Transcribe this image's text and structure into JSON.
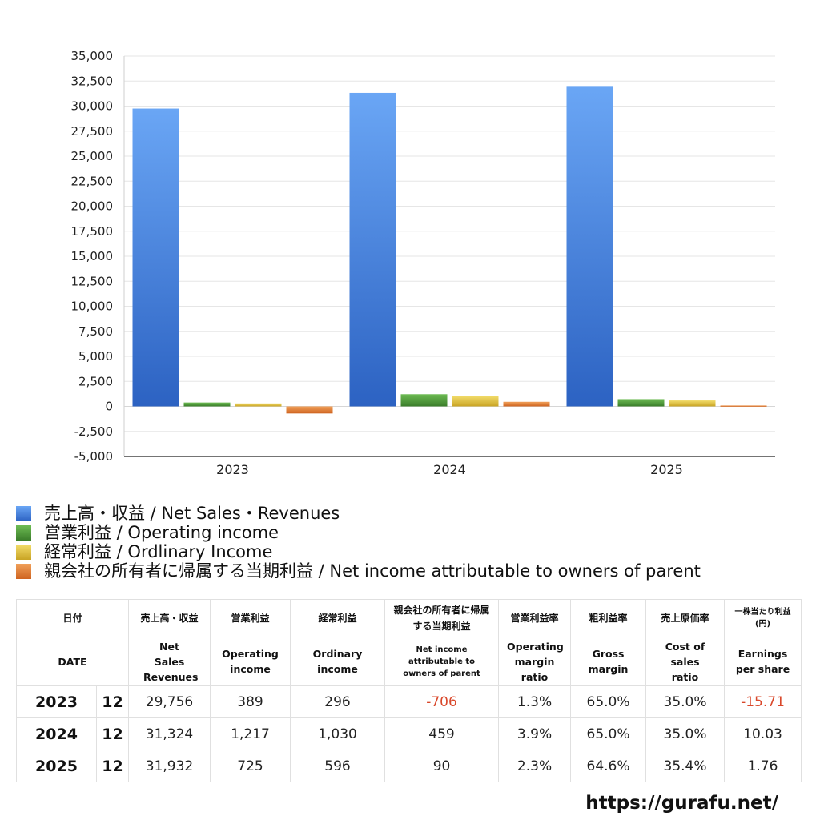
{
  "chart_data": {
    "type": "bar",
    "categories": [
      "2023",
      "2024",
      "2025"
    ],
    "series": [
      {
        "name": "売上高・収益 / Net Sales・Revenues",
        "values": [
          29756,
          31324,
          31932
        ],
        "color": "#3f7fe3"
      },
      {
        "name": "営業利益 / Operating income",
        "values": [
          389,
          1217,
          725
        ],
        "color": "#4f9a3a"
      },
      {
        "name": "経常利益 / Ordlinary Income",
        "values": [
          296,
          1030,
          596
        ],
        "color": "#e2c43a"
      },
      {
        "name": "親会社の所有者に帰属する当期利益 / Net income attributable to owners of parent",
        "values": [
          -706,
          459,
          90
        ],
        "color": "#e07a2c"
      }
    ],
    "ylim": [
      -5000,
      35000
    ],
    "yticks": [
      35000,
      32500,
      30000,
      27500,
      25000,
      22500,
      20000,
      17500,
      15000,
      12500,
      10000,
      7500,
      5000,
      2500,
      0,
      -2500,
      -5000
    ],
    "ytick_labels": [
      "35,000",
      "32,500",
      "30,000",
      "27,500",
      "25,000",
      "22,500",
      "20,000",
      "17,500",
      "15,000",
      "12,500",
      "10,000",
      "7,500",
      "5,000",
      "2,500",
      "0",
      "-2,500",
      "-5,000"
    ],
    "grid": true,
    "legend_position": "bottom-left"
  },
  "table": {
    "header_jp": [
      "日付",
      "売上高・収益",
      "営業利益",
      "経常利益",
      "親会社の所有者に帰属する当期利益",
      "営業利益率",
      "粗利益率",
      "売上原価率",
      "一株当たり利益(円)"
    ],
    "header_en": [
      "DATE",
      "Net Sales Revenues",
      "Operating income",
      "Ordinary income",
      "Net income attributable to owners of parent",
      "Operating margin ratio",
      "Gross margin",
      "Cost of sales ratio",
      "Earnings per share"
    ],
    "rows": [
      {
        "year": "2023",
        "month": "12",
        "sales": "29,756",
        "op": "389",
        "ord": "296",
        "net": "-706",
        "opm": "1.3%",
        "gm": "65.0%",
        "csr": "35.0%",
        "eps": "-15.71"
      },
      {
        "year": "2024",
        "month": "12",
        "sales": "31,324",
        "op": "1,217",
        "ord": "1,030",
        "net": "459",
        "opm": "3.9%",
        "gm": "65.0%",
        "csr": "35.0%",
        "eps": "10.03"
      },
      {
        "year": "2025",
        "month": "12",
        "sales": "31,932",
        "op": "725",
        "ord": "596",
        "net": "90",
        "opm": "2.3%",
        "gm": "64.6%",
        "csr": "35.4%",
        "eps": "1.76"
      }
    ]
  },
  "footer": {
    "url": "https://gurafu.net/"
  }
}
